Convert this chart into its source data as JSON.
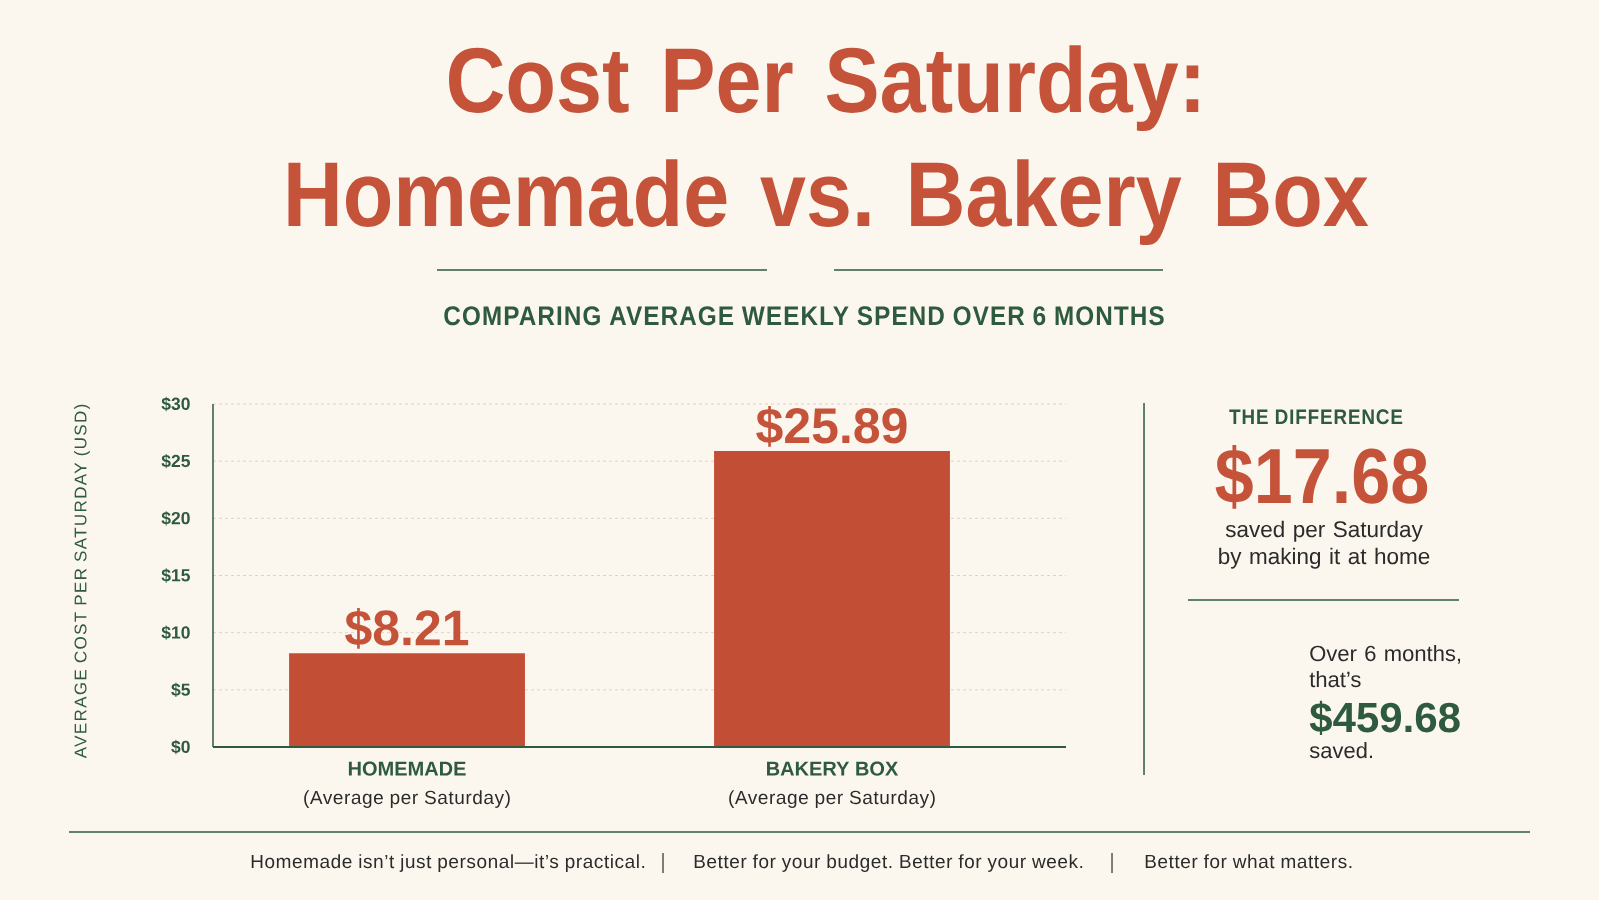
{
  "chart_data": {
    "type": "bar",
    "title": "Cost Per Saturday: Homemade vs. Bakery Box",
    "subtitle": "COMPARING AVERAGE WEEKLY SPEND OVER 6 MONTHS",
    "ylabel": "AVERAGE COST PER SATURDAY (USD)",
    "categories": [
      "HOMEMADE",
      "BAKERY BOX"
    ],
    "values": [
      8.21,
      25.89
    ],
    "value_labels": [
      "$8.21",
      "$25.89"
    ],
    "color": "#c24f35",
    "ylim": [
      0,
      30
    ],
    "yticks": [
      {
        "value": 0,
        "label": "$0"
      },
      {
        "value": 5,
        "label": "$5"
      },
      {
        "value": 10,
        "label": "$10"
      },
      {
        "value": 15,
        "label": "$15"
      },
      {
        "value": 20,
        "label": "$20"
      },
      {
        "value": 25,
        "label": "$25"
      },
      {
        "value": 30,
        "label": "$30"
      }
    ],
    "grid": "y",
    "annotations": [
      "(Average per Saturday)",
      "(Average per Saturday)",
      "THE DIFFERENCE",
      "$17.68",
      "saved per Saturday by making it at home",
      "Over 6 months, that’s",
      "$459.68",
      "saved.",
      "Homemade isn’t just personal—it’s practical.",
      "Better for your budget. Better for your week.",
      "Better for what matters."
    ]
  }
}
